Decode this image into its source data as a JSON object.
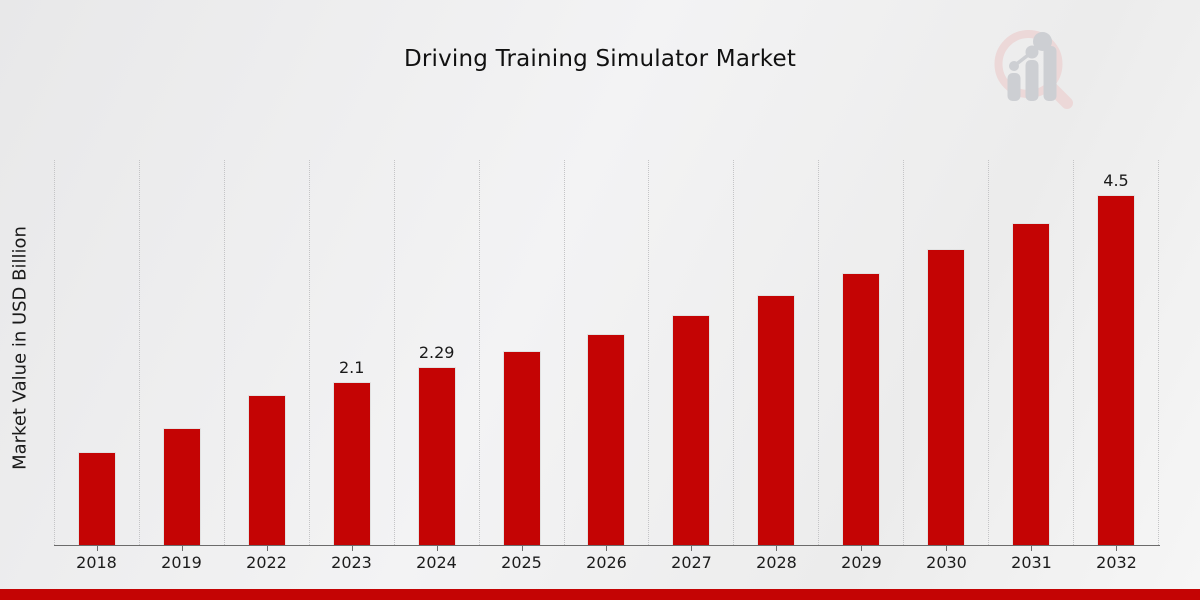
{
  "header": {
    "title": "Driving Training Simulator Market"
  },
  "watermark": {
    "name": "magnifier-bar-chart-logo",
    "ring_color": "#ecd6d6",
    "bars_color": "#caccd1"
  },
  "chart_data": {
    "type": "bar",
    "title": "Driving Training Simulator Market",
    "xlabel": "",
    "ylabel": "Market Value in USD Billion",
    "categories": [
      "2018",
      "2019",
      "2022",
      "2023",
      "2024",
      "2025",
      "2026",
      "2027",
      "2028",
      "2029",
      "2030",
      "2031",
      "2032"
    ],
    "values": [
      1.2,
      1.5,
      1.93,
      2.1,
      2.29,
      2.5,
      2.71,
      2.96,
      3.21,
      3.5,
      3.81,
      4.14,
      4.5
    ],
    "data_labels": {
      "2023": "2.1",
      "2024": "2.29",
      "2032": "4.5"
    },
    "units": "USD Billion",
    "ylim": [
      0,
      4.95
    ],
    "yticks_visible": false,
    "grid": "vertical-dotted",
    "legend_position": "none",
    "bar_color": "#c40404"
  },
  "footer": {
    "accent_bar_color": "#c40404"
  }
}
